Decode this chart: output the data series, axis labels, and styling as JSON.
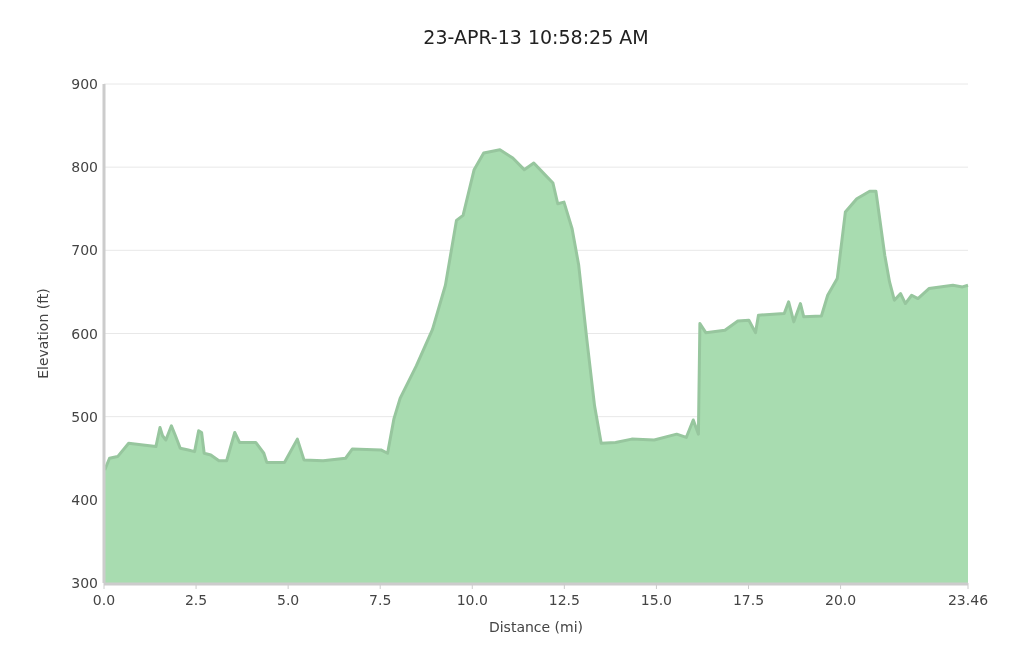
{
  "chart_data": {
    "type": "area",
    "title": "23-APR-13 10:58:25 AM",
    "xlabel": "Distance   (mi)",
    "ylabel": "Elevation (ft)",
    "xlim": [
      0,
      23.46
    ],
    "ylim": [
      300,
      900
    ],
    "xticks": [
      {
        "value": 0,
        "label": "0.0"
      },
      2.5,
      {
        "value": 5,
        "label": "5.0"
      },
      7.5,
      {
        "value": 10,
        "label": "10.0"
      },
      12.5,
      {
        "value": 15,
        "label": "15.0"
      },
      17.5,
      {
        "value": 20,
        "label": "20.0"
      },
      23.46
    ],
    "yticks": [
      300,
      400,
      500,
      600,
      700,
      800,
      900
    ],
    "grid": "y",
    "series": [
      {
        "color": "#a8dcb0",
        "x": [
          0.02,
          0.15,
          0.37,
          0.67,
          1.06,
          1.41,
          1.52,
          1.59,
          1.68,
          1.83,
          1.94,
          2.07,
          2.29,
          2.46,
          2.57,
          2.65,
          2.72,
          2.9,
          3.12,
          3.33,
          3.55,
          3.68,
          4.12,
          4.34,
          4.42,
          4.9,
          5.25,
          5.43,
          5.95,
          6.56,
          6.74,
          7.52,
          7.7,
          7.87,
          8.04,
          8.48,
          8.92,
          9.27,
          9.57,
          9.75,
          10.05,
          10.31,
          10.75,
          11.1,
          11.41,
          11.67,
          11.97,
          12.19,
          12.32,
          12.49,
          12.71,
          12.89,
          13.11,
          13.32,
          13.5,
          13.89,
          14.33,
          14.94,
          15.55,
          15.81,
          16.0,
          16.14,
          16.18,
          16.34,
          16.86,
          17.21,
          17.51,
          17.69,
          17.77,
          18.47,
          18.59,
          18.73,
          18.91,
          19.0,
          19.48,
          19.65,
          19.91,
          20.13,
          20.44,
          20.79,
          20.96,
          21.2,
          21.33,
          21.46,
          21.63,
          21.76,
          21.93,
          22.1,
          22.4,
          22.7,
          23.05,
          23.31,
          23.46
        ],
        "values": [
          436,
          450,
          452,
          468,
          466,
          464,
          487,
          477,
          472,
          489,
          477,
          462,
          460,
          458,
          483,
          481,
          456,
          454,
          447,
          447,
          481,
          469,
          469,
          456,
          445,
          445,
          473,
          448,
          447,
          450,
          461,
          460,
          456,
          497,
          522,
          561,
          605,
          658,
          736,
          742,
          797,
          817,
          821,
          811,
          797,
          805,
          791,
          781,
          756,
          758,
          726,
          682,
          593,
          513,
          468,
          469,
          473,
          472,
          479,
          475,
          496,
          479,
          612,
          601,
          604,
          615,
          616,
          601,
          622,
          624,
          638,
          614,
          636,
          620,
          621,
          646,
          666,
          746,
          762,
          771,
          771,
          694,
          662,
          640,
          648,
          636,
          646,
          642,
          654,
          656,
          658,
          656,
          658
        ]
      }
    ]
  }
}
